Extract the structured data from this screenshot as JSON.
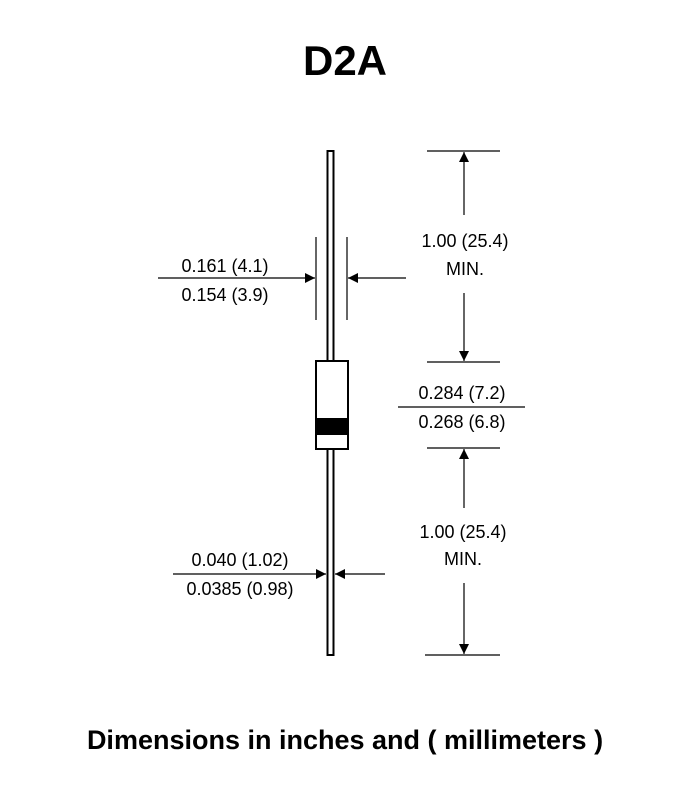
{
  "title": "D2A",
  "footer": "Dimensions in inches and ( millimeters )",
  "dimensions": {
    "top_lead_length": {
      "value": "1.00 (25.4)",
      "qualifier": "MIN."
    },
    "body_length": {
      "max": "0.284 (7.2)",
      "min": "0.268 (6.8)"
    },
    "bottom_lead_length": {
      "value": "1.00 (25.4)",
      "qualifier": "MIN."
    },
    "body_diameter": {
      "max": "0.161 (4.1)",
      "min": "0.154 (3.9)"
    },
    "lead_diameter": {
      "max": "0.040 (1.02)",
      "min": "0.0385 (0.98)"
    }
  }
}
